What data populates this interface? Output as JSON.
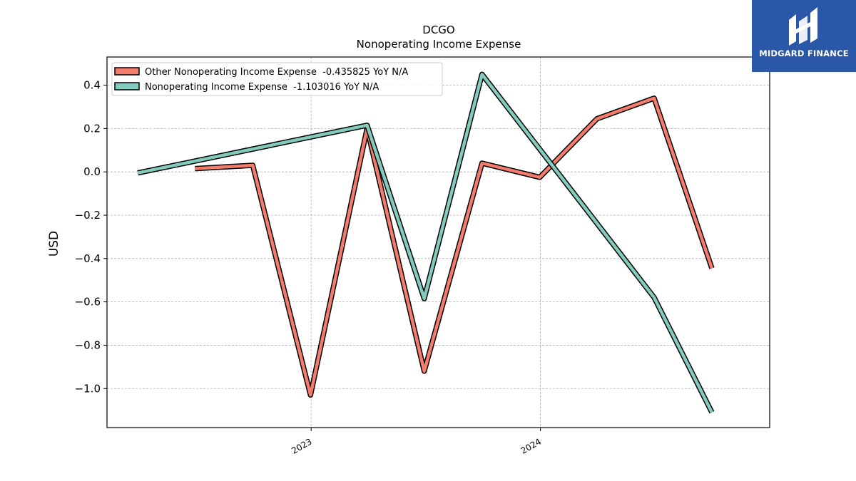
{
  "chart_data": {
    "type": "line",
    "title": "DCGO",
    "subtitle": "Nonoperating Income Expense",
    "ylabel": "USD",
    "xlabel": "",
    "x_ticks": [
      "2023",
      "2024"
    ],
    "y_ticks": [
      "0.4",
      "0.2",
      "0.0",
      "−0.2",
      "−0.4",
      "−0.6",
      "−0.8",
      "−1.0"
    ],
    "ylim": [
      -1.18,
      0.53
    ],
    "xlim": [
      "2022-02-10",
      "2024-12-31"
    ],
    "grid": true,
    "legend_position": "top-left",
    "series": [
      {
        "name": "Other Nonoperating Income Expense  -0.435825 YoY N/A",
        "color": "#f47c6c",
        "x": [
          "2022-06-30",
          "2022-09-30",
          "2022-12-31",
          "2023-03-31",
          "2023-06-30",
          "2023-09-30",
          "2023-12-31",
          "2024-03-31",
          "2024-06-30",
          "2024-09-30"
        ],
        "values": [
          0.015,
          0.03,
          -1.03,
          0.2,
          -0.92,
          0.04,
          -0.025,
          0.245,
          0.34,
          -0.445
        ]
      },
      {
        "name": "Nonoperating Income Expense  -1.103016 YoY N/A",
        "color": "#82cbbd",
        "x": [
          "2022-03-31",
          "2023-03-31",
          "2023-06-30",
          "2023-09-30",
          "2024-06-30",
          "2024-09-30"
        ],
        "values": [
          -0.005,
          0.215,
          -0.585,
          0.45,
          -0.58,
          -1.11
        ]
      }
    ]
  },
  "brand": {
    "name": "MIDGARD FINANCE",
    "color": "#2b57a8"
  }
}
